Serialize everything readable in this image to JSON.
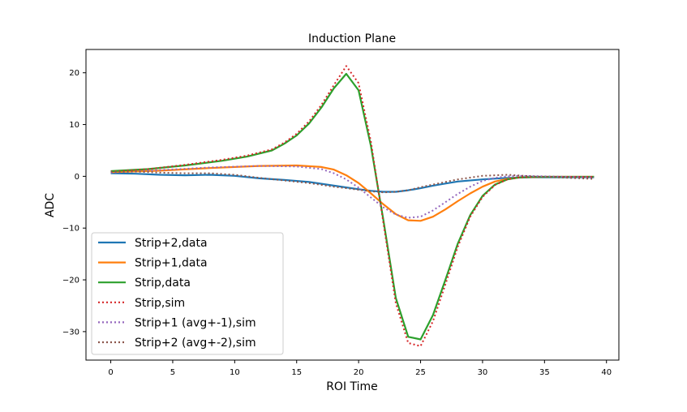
{
  "chart_data": {
    "type": "line",
    "title": "Induction Plane",
    "xlabel": "ROI Time",
    "ylabel": "ADC",
    "xlim": [
      -2,
      41
    ],
    "ylim": [
      -35.5,
      24.5
    ],
    "xticks": [
      0,
      5,
      10,
      15,
      20,
      25,
      30,
      35,
      40
    ],
    "yticks": [
      20,
      10,
      0,
      -10,
      -20,
      -30
    ],
    "ytick_labels": [
      "20",
      "10",
      "0",
      "−10",
      "−20",
      "−30"
    ],
    "grid": false,
    "legend_position": "lower-left",
    "series": [
      {
        "name": "Strip+2,data",
        "color": "#1f77b4",
        "style": "solid",
        "x": [
          0,
          2,
          4,
          6,
          8,
          10,
          12,
          14,
          16,
          18,
          20,
          21,
          22,
          23,
          24,
          25,
          26,
          27,
          28,
          30,
          32,
          34,
          36,
          39
        ],
        "y": [
          0.6,
          0.5,
          0.3,
          0.2,
          0.3,
          0.1,
          -0.4,
          -0.7,
          -1.1,
          -1.8,
          -2.5,
          -2.8,
          -3.0,
          -3.0,
          -2.7,
          -2.3,
          -1.8,
          -1.4,
          -1.0,
          -0.6,
          -0.3,
          -0.2,
          -0.2,
          -0.2
        ]
      },
      {
        "name": "Strip+1,data",
        "color": "#ff7f0e",
        "style": "solid",
        "x": [
          0,
          4,
          8,
          12,
          15,
          17,
          18,
          19,
          20,
          21,
          22,
          23,
          24,
          25,
          26,
          27,
          28,
          29,
          30,
          31,
          32,
          33,
          35,
          39
        ],
        "y": [
          0.8,
          1.1,
          1.6,
          2.0,
          2.1,
          1.8,
          1.3,
          0.2,
          -1.3,
          -3.3,
          -5.4,
          -7.3,
          -8.5,
          -8.6,
          -7.8,
          -6.4,
          -4.8,
          -3.3,
          -2.0,
          -1.0,
          -0.5,
          -0.2,
          -0.1,
          -0.1
        ]
      },
      {
        "name": "Strip,data",
        "color": "#2ca02c",
        "style": "solid",
        "x": [
          0,
          3,
          6,
          9,
          11,
          13,
          14,
          15,
          16,
          17,
          18,
          19,
          20,
          21,
          22,
          23,
          24,
          25,
          26,
          27,
          28,
          29,
          30,
          31,
          32,
          33,
          34,
          35,
          39
        ],
        "y": [
          1.0,
          1.4,
          2.1,
          3.0,
          3.8,
          5.0,
          6.3,
          7.9,
          10.2,
          13.3,
          17.0,
          19.8,
          16.6,
          5.8,
          -8.5,
          -23.5,
          -31.0,
          -31.5,
          -26.8,
          -20.0,
          -13.0,
          -7.5,
          -3.8,
          -1.6,
          -0.6,
          -0.2,
          -0.1,
          -0.1,
          -0.1
        ]
      },
      {
        "name": "Strip,sim",
        "color": "#d62728",
        "style": "dotted",
        "x": [
          0,
          3,
          6,
          9,
          11,
          13,
          14,
          15,
          16,
          17,
          18,
          19,
          20,
          21,
          22,
          23,
          24,
          25,
          26,
          27,
          28,
          29,
          30,
          31,
          32,
          33,
          34,
          35,
          39
        ],
        "y": [
          0.9,
          1.4,
          2.2,
          3.2,
          4.0,
          5.2,
          6.5,
          8.2,
          10.6,
          13.8,
          17.6,
          21.3,
          18.0,
          6.6,
          -9.0,
          -24.5,
          -32.2,
          -32.8,
          -28.0,
          -20.9,
          -13.6,
          -7.8,
          -4.0,
          -1.7,
          -0.6,
          -0.2,
          -0.1,
          -0.1,
          -0.1
        ]
      },
      {
        "name": "Strip+1 (avg+-1),sim",
        "color": "#9467bd",
        "style": "dotted",
        "x": [
          0,
          4,
          8,
          12,
          15,
          17,
          18,
          19,
          20,
          21,
          22,
          23,
          24,
          25,
          26,
          27,
          28,
          29,
          30,
          31,
          32,
          33,
          35,
          39
        ],
        "y": [
          0.7,
          1.2,
          1.7,
          2.0,
          1.9,
          1.4,
          0.6,
          -0.6,
          -2.2,
          -4.1,
          -6.0,
          -7.4,
          -8.0,
          -7.8,
          -6.6,
          -5.0,
          -3.4,
          -2.0,
          -0.9,
          -0.3,
          0.0,
          0.1,
          0.0,
          -0.2
        ]
      },
      {
        "name": "Strip+2 (avg+-2),sim",
        "color": "#8c564b",
        "style": "dotted",
        "x": [
          0,
          2,
          4,
          6,
          8,
          10,
          12,
          14,
          16,
          18,
          20,
          21,
          22,
          23,
          24,
          25,
          26,
          27,
          28,
          30,
          32,
          34,
          36,
          39
        ],
        "y": [
          0.9,
          0.9,
          0.7,
          0.6,
          0.6,
          0.3,
          -0.3,
          -0.8,
          -1.3,
          -2.0,
          -2.6,
          -2.9,
          -3.1,
          -3.0,
          -2.7,
          -2.1,
          -1.6,
          -1.1,
          -0.6,
          0.1,
          0.3,
          0.0,
          -0.2,
          -0.5
        ]
      }
    ]
  }
}
